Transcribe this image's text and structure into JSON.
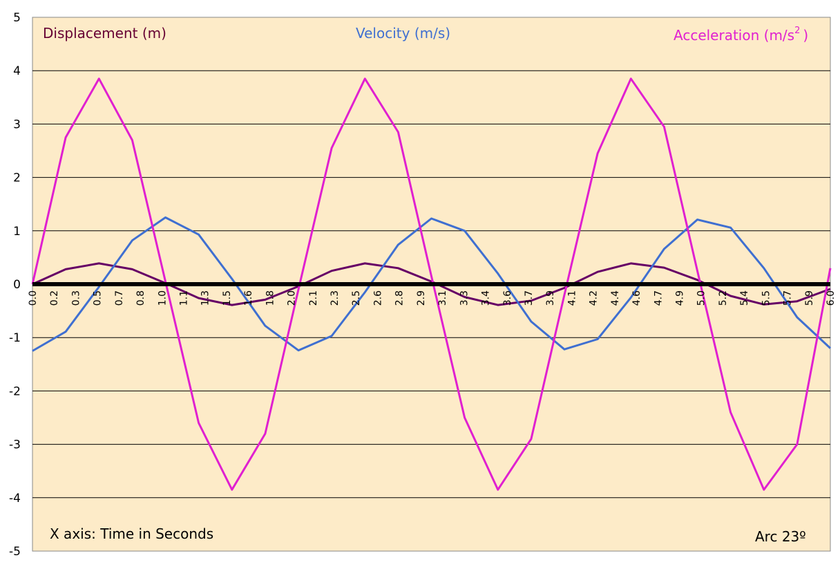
{
  "chart_data": {
    "type": "line",
    "xlabel": "X axis: Time in Seconds",
    "ylim": [
      -5,
      5
    ],
    "xlim": [
      0,
      6.0
    ],
    "yticks": [
      "5",
      "4",
      "3",
      "2",
      "1",
      "0",
      "-1",
      "-2",
      "-3",
      "-4",
      "-5"
    ],
    "xtick_labels": [
      "0.0",
      "0.2",
      "0.3",
      "0.5",
      "0.7",
      "0.8",
      "1.0",
      "1.1",
      "1.3",
      "1.5",
      "1.6",
      "1.8",
      "2.0",
      "2.1",
      "2.3",
      "2.5",
      "2.6",
      "2.8",
      "2.9",
      "3.1",
      "3.3",
      "3.4",
      "3.6",
      "3.7",
      "3.9",
      "4.1",
      "4.2",
      "4.4",
      "4.6",
      "4.7",
      "4.9",
      "5.0",
      "5.2",
      "5.4",
      "5.5",
      "5.7",
      "5.9",
      "6.0"
    ],
    "grid": true,
    "series": [
      {
        "name": "Displacement (m)",
        "color": "#660066",
        "x": [
          0,
          0.25,
          0.5,
          0.75,
          1.0,
          1.25,
          1.5,
          1.75,
          2.0,
          2.25,
          2.5,
          2.75,
          3.0,
          3.25,
          3.5,
          3.75,
          4.0,
          4.25,
          4.5,
          4.75,
          5.0,
          5.25,
          5.5,
          5.75,
          6.0
        ],
        "values": [
          0,
          0.28,
          0.39,
          0.28,
          0.02,
          -0.26,
          -0.39,
          -0.29,
          -0.04,
          0.25,
          0.39,
          0.3,
          0.05,
          -0.24,
          -0.39,
          -0.31,
          -0.07,
          0.23,
          0.39,
          0.31,
          0.08,
          -0.22,
          -0.38,
          -0.32,
          -0.09
        ]
      },
      {
        "name": "Velocity (m/s)",
        "color": "#3f6fd1",
        "x": [
          0,
          0.25,
          0.5,
          0.75,
          1.0,
          1.25,
          1.5,
          1.75,
          2.0,
          2.25,
          2.5,
          2.75,
          3.0,
          3.25,
          3.5,
          3.75,
          4.0,
          4.25,
          4.5,
          4.75,
          5.0,
          5.25,
          5.5,
          5.75,
          6.0
        ],
        "values": [
          -1.25,
          -0.89,
          -0.05,
          0.82,
          1.25,
          0.93,
          0.1,
          -0.78,
          -1.24,
          -0.97,
          -0.15,
          0.74,
          1.23,
          1.0,
          0.2,
          -0.7,
          -1.22,
          -1.03,
          -0.25,
          0.66,
          1.21,
          1.06,
          0.3,
          -0.62,
          -1.2
        ]
      },
      {
        "name": "Acceleration (m/s2)",
        "color": "#e020d0",
        "x": [
          0,
          0.25,
          0.5,
          0.75,
          1.0,
          1.25,
          1.5,
          1.75,
          2.0,
          2.25,
          2.5,
          2.75,
          3.0,
          3.25,
          3.5,
          3.75,
          4.0,
          4.25,
          4.5,
          4.75,
          5.0,
          5.25,
          5.5,
          5.75,
          6.0
        ],
        "values": [
          0,
          2.75,
          3.85,
          2.7,
          0.05,
          -2.6,
          -3.85,
          -2.8,
          -0.1,
          2.55,
          3.85,
          2.85,
          0.15,
          -2.5,
          -3.85,
          -2.9,
          -0.2,
          2.45,
          3.85,
          2.95,
          0.25,
          -2.4,
          -3.85,
          -3.0,
          0.3
        ]
      }
    ],
    "annotations": {
      "displacement_label": "Displacement (m)",
      "velocity_label": "Velocity (m/s)",
      "acceleration_label": "Acceleration (m/s",
      "acceleration_sup": "2",
      "acceleration_close": ")",
      "x_axis_note": "X axis: Time in Seconds",
      "arc_label": "Arc  23º"
    },
    "colors": {
      "plot_background": "#fdebc8",
      "gridline": "#000000",
      "zero_line": "#000000"
    }
  }
}
